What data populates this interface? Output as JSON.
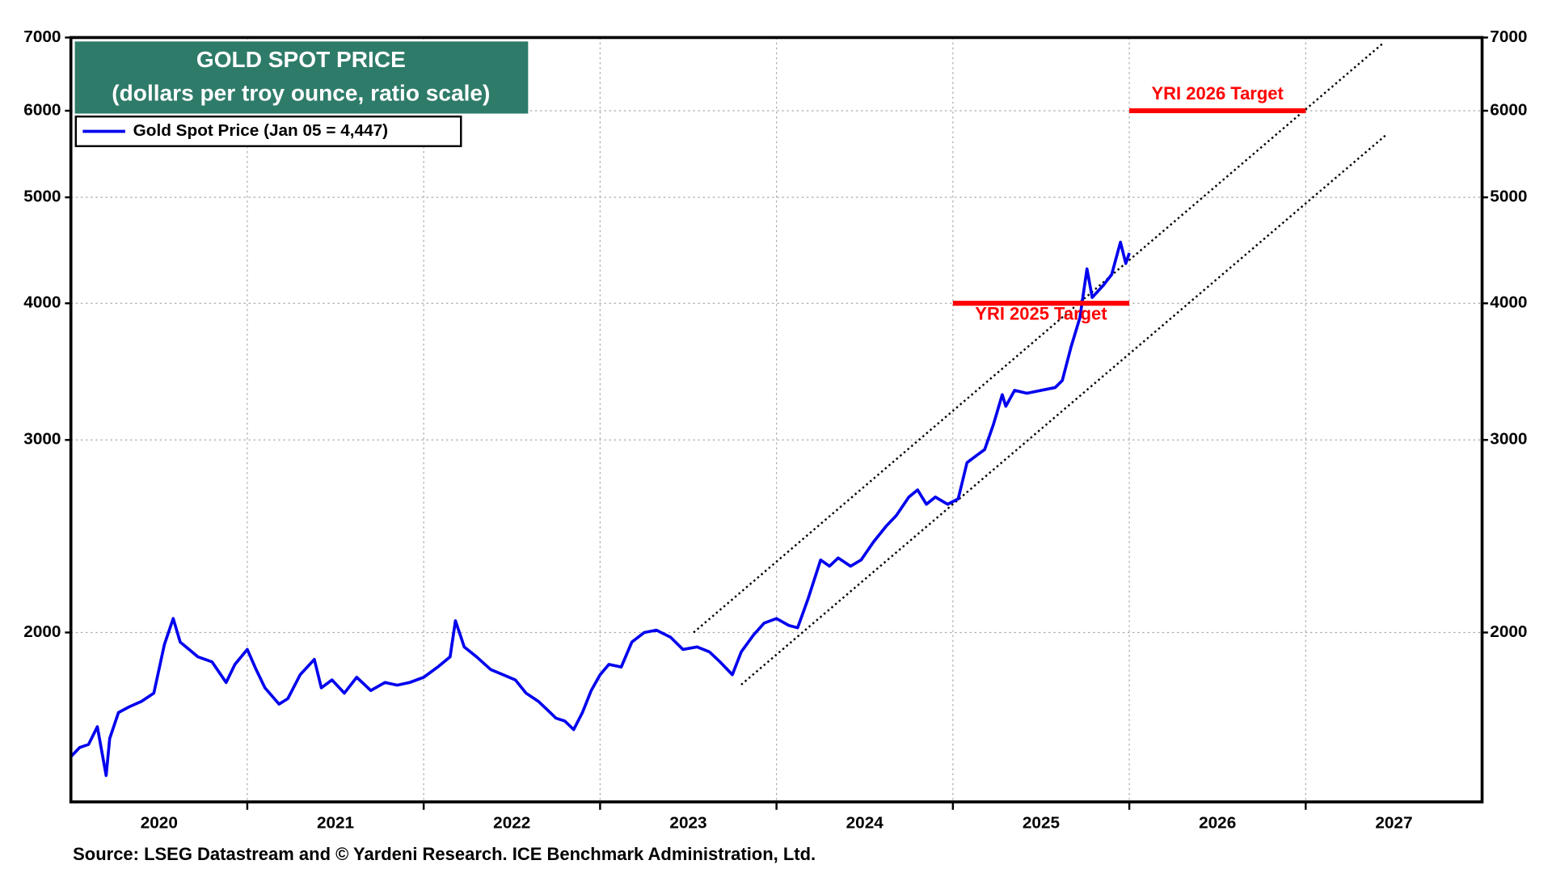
{
  "chart_data": {
    "type": "line",
    "title": "GOLD SPOT PRICE",
    "subtitle": "(dollars per troy ounce, ratio scale)",
    "source": "Source: LSEG Datastream and © Yardeni Research. ICE Benchmark Administration, Ltd.",
    "log_scale": true,
    "grid": true,
    "legend": "upper left",
    "xlim": [
      2020,
      2028
    ],
    "xgrid": [
      2021,
      2022,
      2023,
      2024,
      2025,
      2026,
      2027
    ],
    "xticks": [
      {
        "value": 2020.5,
        "label": "2020"
      },
      {
        "value": 2021.5,
        "label": "2021"
      },
      {
        "value": 2022.5,
        "label": "2022"
      },
      {
        "value": 2023.5,
        "label": "2023"
      },
      {
        "value": 2024.5,
        "label": "2024"
      },
      {
        "value": 2025.5,
        "label": "2025"
      },
      {
        "value": 2026.5,
        "label": "2026"
      },
      {
        "value": 2027.5,
        "label": "2027"
      }
    ],
    "ylim": [
      1400,
      7000
    ],
    "yticks": [
      2000,
      3000,
      4000,
      5000,
      6000,
      7000
    ],
    "series": [
      {
        "name": "Gold Spot Price (Jan 05 = 4,447)",
        "color": "#0000ee",
        "x": [
          2020.0,
          2020.05,
          2020.1,
          2020.15,
          2020.2,
          2020.22,
          2020.27,
          2020.33,
          2020.4,
          2020.47,
          2020.53,
          2020.58,
          2020.62,
          2020.67,
          2020.72,
          2020.8,
          2020.88,
          2020.93,
          2021.0,
          2021.05,
          2021.1,
          2021.18,
          2021.23,
          2021.3,
          2021.38,
          2021.42,
          2021.48,
          2021.55,
          2021.62,
          2021.7,
          2021.78,
          2021.85,
          2021.92,
          2022.0,
          2022.08,
          2022.15,
          2022.18,
          2022.23,
          2022.3,
          2022.38,
          2022.45,
          2022.52,
          2022.58,
          2022.65,
          2022.7,
          2022.75,
          2022.8,
          2022.85,
          2022.9,
          2022.95,
          2023.0,
          2023.05,
          2023.12,
          2023.18,
          2023.25,
          2023.32,
          2023.4,
          2023.47,
          2023.55,
          2023.62,
          2023.68,
          2023.75,
          2023.8,
          2023.87,
          2023.93,
          2024.0,
          2024.07,
          2024.12,
          2024.18,
          2024.25,
          2024.3,
          2024.35,
          2024.42,
          2024.48,
          2024.55,
          2024.62,
          2024.68,
          2024.75,
          2024.8,
          2024.85,
          2024.9,
          2024.97,
          2025.03,
          2025.08,
          2025.13,
          2025.18,
          2025.23,
          2025.28,
          2025.3,
          2025.35,
          2025.42,
          2025.5,
          2025.58,
          2025.62,
          2025.67,
          2025.72,
          2025.76,
          2025.79,
          2025.82,
          2025.85,
          2025.9,
          2025.95,
          2025.98,
          2026.0
        ],
        "values": [
          1540,
          1570,
          1580,
          1640,
          1480,
          1600,
          1690,
          1710,
          1730,
          1760,
          1950,
          2060,
          1960,
          1930,
          1900,
          1880,
          1800,
          1870,
          1930,
          1850,
          1780,
          1720,
          1740,
          1830,
          1890,
          1780,
          1810,
          1760,
          1820,
          1770,
          1800,
          1790,
          1800,
          1820,
          1860,
          1900,
          2050,
          1940,
          1900,
          1850,
          1830,
          1810,
          1760,
          1730,
          1700,
          1670,
          1660,
          1630,
          1690,
          1770,
          1830,
          1870,
          1860,
          1960,
          2000,
          2010,
          1980,
          1930,
          1940,
          1920,
          1880,
          1830,
          1920,
          1990,
          2040,
          2060,
          2030,
          2020,
          2150,
          2330,
          2300,
          2340,
          2300,
          2330,
          2420,
          2500,
          2560,
          2660,
          2700,
          2620,
          2660,
          2620,
          2650,
          2860,
          2900,
          2940,
          3100,
          3300,
          3220,
          3330,
          3310,
          3330,
          3350,
          3400,
          3650,
          3880,
          4300,
          4050,
          4100,
          4150,
          4250,
          4550,
          4350,
          4447
        ]
      }
    ],
    "trend_lines": [
      {
        "x": [
          2023.53,
          2027.44
        ],
        "y": [
          2000,
          6920
        ]
      },
      {
        "x": [
          2023.8,
          2027.46
        ],
        "y": [
          1792,
          5710
        ]
      }
    ],
    "targets": [
      {
        "label": "YRI 2025 Target",
        "value": 4000,
        "x": [
          2025,
          2026
        ],
        "color": "#ff0000"
      },
      {
        "label": "YRI 2026 Target",
        "value": 6000,
        "x": [
          2026,
          2027
        ],
        "color": "#ff0000"
      }
    ]
  }
}
